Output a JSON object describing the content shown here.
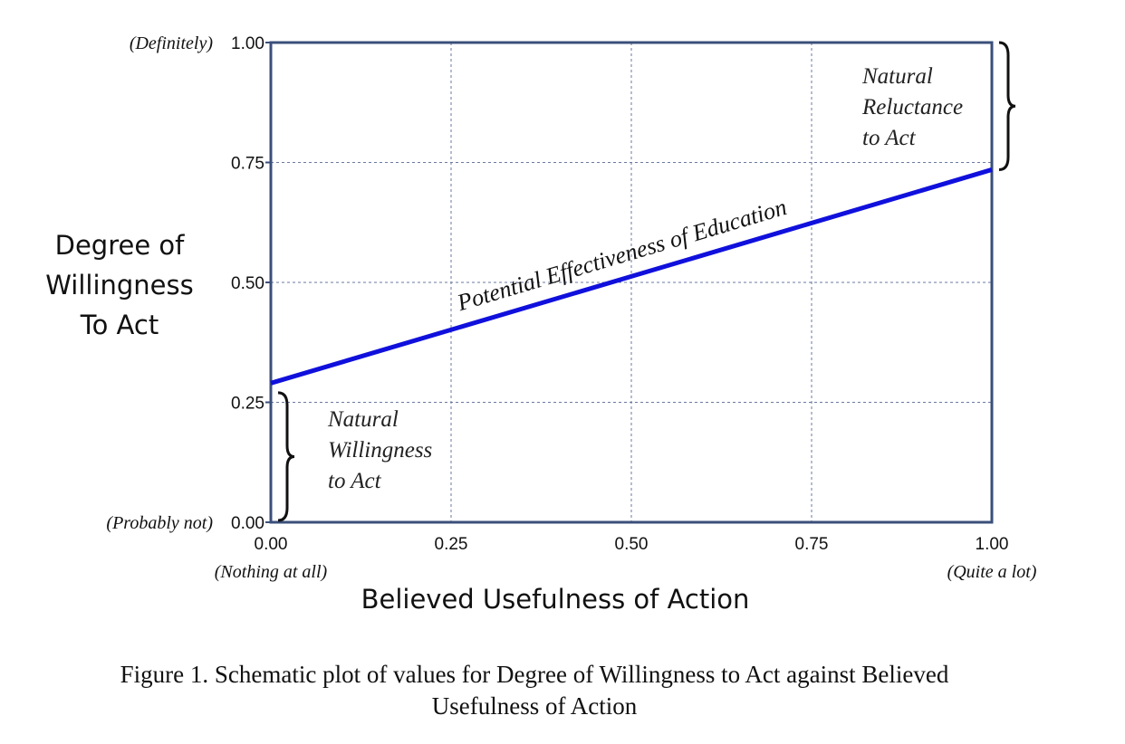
{
  "chart_data": {
    "type": "line",
    "title": "",
    "xlabel": "Believed Usefulness of Action",
    "ylabel": [
      "Degree of",
      "Willingness",
      "To Act"
    ],
    "xlim": [
      0,
      1
    ],
    "ylim": [
      0,
      1
    ],
    "grid": true,
    "x_ticks": [
      0,
      0.25,
      0.5,
      0.75,
      1
    ],
    "y_ticks": [
      0,
      0.25,
      0.5,
      0.75,
      1
    ],
    "x_tick_labels": [
      "0.00",
      "0.25",
      "0.50",
      "0.75",
      "1.00"
    ],
    "y_tick_labels": [
      "0.00",
      "0.25",
      "0.50",
      "0.75",
      "1.00"
    ],
    "x_qualifiers": {
      "min": "(Nothing at all)",
      "max": "(Quite a lot)"
    },
    "y_qualifiers": {
      "min": "(Probably not)",
      "max": "(Definitely)"
    },
    "series": [
      {
        "name": "Potential Effectiveness of Education",
        "color": "#1010dd",
        "x": [
          0,
          1
        ],
        "y": [
          0.29,
          0.735
        ]
      }
    ],
    "annotations": [
      {
        "name": "natural-willingness",
        "lines": [
          "Natural",
          "Willingness",
          "to Act"
        ],
        "brace_range": [
          0,
          0.27
        ]
      },
      {
        "name": "natural-reluctance",
        "lines": [
          "Natural",
          "Reluctance",
          "to Act"
        ],
        "brace_range": [
          0.735,
          1
        ]
      }
    ]
  },
  "caption": {
    "line1": "Figure 1. Schematic plot of values for Degree of Willingness to Act against Believed",
    "line2": "Usefulness of Action"
  },
  "colors": {
    "frame": "#3a4f7a",
    "grid": "#6a7aa0",
    "line": "#1010dd"
  }
}
